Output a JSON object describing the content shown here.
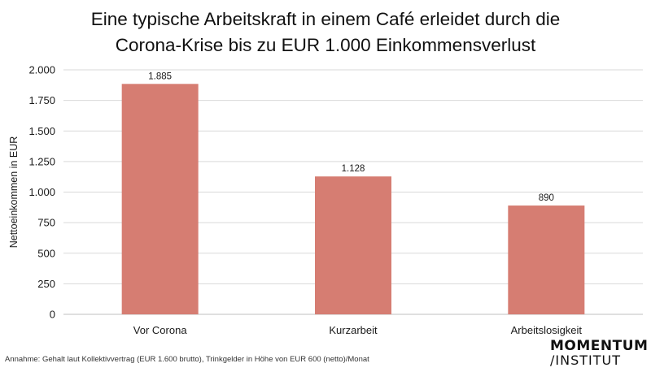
{
  "title": {
    "line1": "Eine typische Arbeitskraft in einem Café erleidet durch die",
    "line2": "Corona-Krise bis zu EUR 1.000 Einkommensverlust"
  },
  "footnote": "Annahme: Gehalt laut Kollektivvertrag (EUR 1.600 brutto), Trinkgelder in Höhe von EUR 600 (netto)/Monat",
  "logo": {
    "line1": "MOMENTUM",
    "line2": "INSTITUT"
  },
  "colors": {
    "bar": "#d67d72",
    "grid": "#d9d9d9",
    "text": "#1a1a1a"
  },
  "chart_data": {
    "type": "bar",
    "categories": [
      "Vor Corona",
      "Kurzarbeit",
      "Arbeitslosigkeit"
    ],
    "values": [
      1885,
      1128,
      890
    ],
    "value_labels": [
      "1.885",
      "1.128",
      "890"
    ],
    "ylabel": "Nettoeinkommen in EUR",
    "xlabel": "",
    "ylim": [
      0,
      2000
    ],
    "yticks": [
      0,
      250,
      500,
      750,
      1000,
      1250,
      1500,
      1750,
      2000
    ],
    "ytick_labels": [
      "0",
      "250",
      "500",
      "750",
      "1.000",
      "1.250",
      "1.500",
      "1.750",
      "2.000"
    ],
    "grid": true,
    "legend": "none"
  }
}
